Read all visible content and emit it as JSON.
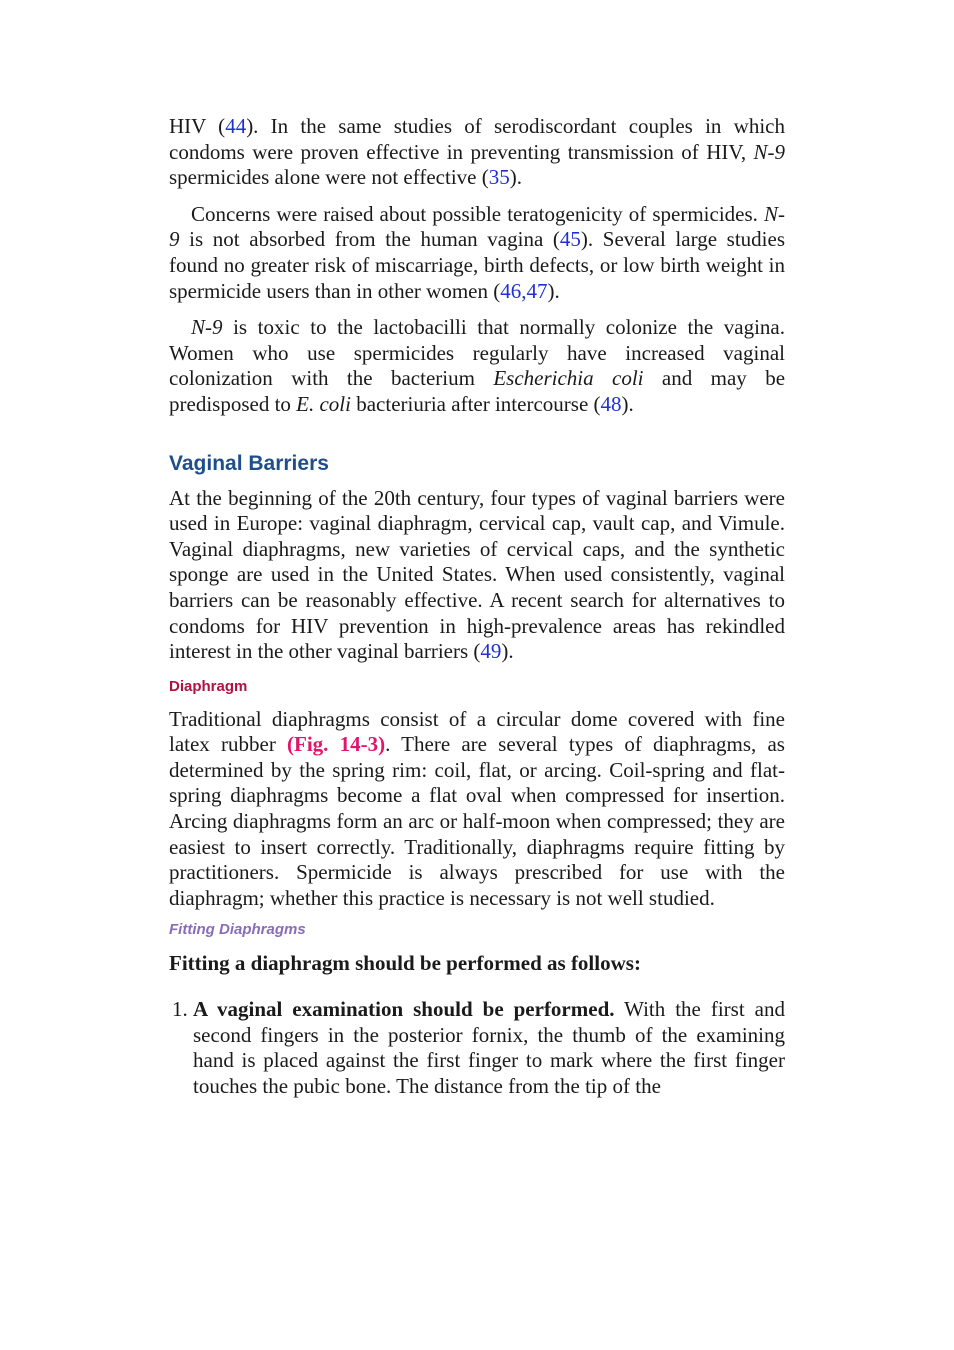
{
  "p1": {
    "a": "HIV (",
    "ref1": "44",
    "b": "). In the same studies of serodiscordant couples in which condoms were proven effective in preventing transmission of HIV, ",
    "n9": "N-9",
    "c": " spermicides alone were not effective (",
    "ref2": "35",
    "d": ")."
  },
  "p2": {
    "a": "Concerns were raised about possible teratogenicity of spermicides. ",
    "n9": "N-9",
    "b": " is not absorbed from the human vagina (",
    "ref1": "45",
    "c": "). Several large studies found no greater risk of miscarriage, birth defects, or low birth weight in spermicide users than in other women (",
    "ref2": "46",
    "comma": ",",
    "ref3": "47",
    "d": ")."
  },
  "p3": {
    "n9": "N-9",
    "a": " is toxic to the lactobacilli that normally colonize the vagina. Women who use spermicides regularly have increased vaginal colonization with the bacterium ",
    "ecoli_full": "Escherichia coli",
    "b": " and may be predisposed to ",
    "ecoli_short": "E. coli",
    "c": " bacteriuria after intercourse (",
    "ref1": "48",
    "d": ")."
  },
  "heading_vaginal_barriers": "Vaginal Barriers",
  "p4": {
    "a": "At the beginning of the 20th century, four types of vaginal barriers were used in Europe: vaginal diaphragm, cervical cap, vault cap, and Vimule. Vaginal diaphragms, new varieties of cervical caps, and the synthetic sponge are used in the United States. When used consistently, vaginal barriers can be reasonably effective. A recent search for alternatives to condoms for HIV prevention in high-prevalence areas has rekindled interest in the other vaginal barriers (",
    "ref1": "49",
    "b": ")."
  },
  "heading_diaphragm": "Diaphragm",
  "p5": {
    "a": "Traditional diaphragms consist of a circular dome covered with fine latex rubber ",
    "fig": "(Fig. 14-3)",
    "b": ". There are several types of diaphragms, as determined by the spring rim: coil, flat, or arcing. Coil-spring and flat-spring diaphragms become a flat oval when compressed for insertion. Arcing diaphragms form an arc or half-moon when compressed; they are easiest to insert correctly. Traditionally, diaphragms require fitting by practitioners. Spermicide is always prescribed for use with the diaphragm; whether this practice is necessary is not well studied."
  },
  "heading_fitting": "Fitting Diaphragms",
  "lead": "Fitting a diaphragm should be performed as follows:",
  "list": [
    {
      "num": "1.",
      "bold": "A vaginal examination should be performed.",
      "text": " With the first and second fingers in the posterior fornix, the thumb of the examining hand is placed against the first finger to mark where the first finger touches the pubic bone. The distance from the tip of the"
    }
  ],
  "colors": {
    "reference_link": "#1f2fd6",
    "figure_link": "#e0156b",
    "heading_1": "#1e4f8c",
    "heading_2": "#b0123f",
    "heading_3": "#8a6bb8"
  }
}
